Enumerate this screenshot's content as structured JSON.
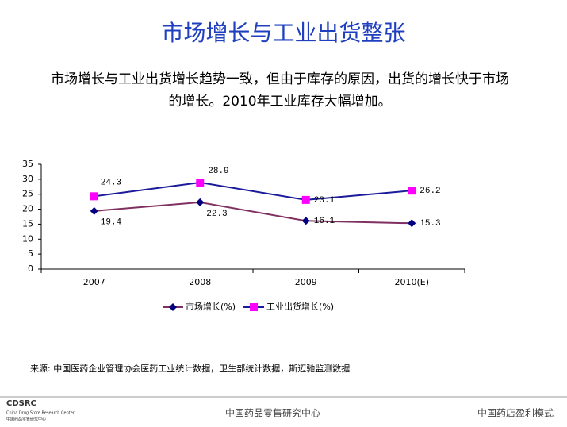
{
  "title": "市场增长与工业出货整张",
  "subtitle": "市场增长与工业出货增长趋势一致，但由于库存的原因，出货的增长快于市场的增长。2010年工业库存大幅增加。",
  "chart_data": {
    "type": "line",
    "categories": [
      "2007",
      "2008",
      "2009",
      "2010(E)"
    ],
    "series": [
      {
        "name": "市场增长(%)",
        "color": "#7f3060",
        "marker": "diamond",
        "marker_color": "#000080",
        "values": [
          19.4,
          22.3,
          16.1,
          15.3
        ]
      },
      {
        "name": "工业出货增长(%)",
        "color": "#1a1a9a",
        "marker": "square",
        "marker_color": "#ff00ff",
        "values": [
          24.3,
          28.9,
          23.1,
          26.2
        ]
      }
    ],
    "ylim": [
      0,
      35
    ],
    "yticks": [
      0,
      5,
      10,
      15,
      20,
      25,
      30,
      35
    ],
    "grid": false,
    "legend": "bottom"
  },
  "source": "来源: 中国医药企业管理协会医药工业统计数据，卫生部统计数据，斯迈驰监测数据",
  "footer": {
    "logo": "CDSRC",
    "logo_en": "China Drug Store Research Center",
    "logo_cn": "中国药品零售研究中心",
    "center": "中国药品零售研究中心",
    "right": "中国药店盈利模式"
  }
}
